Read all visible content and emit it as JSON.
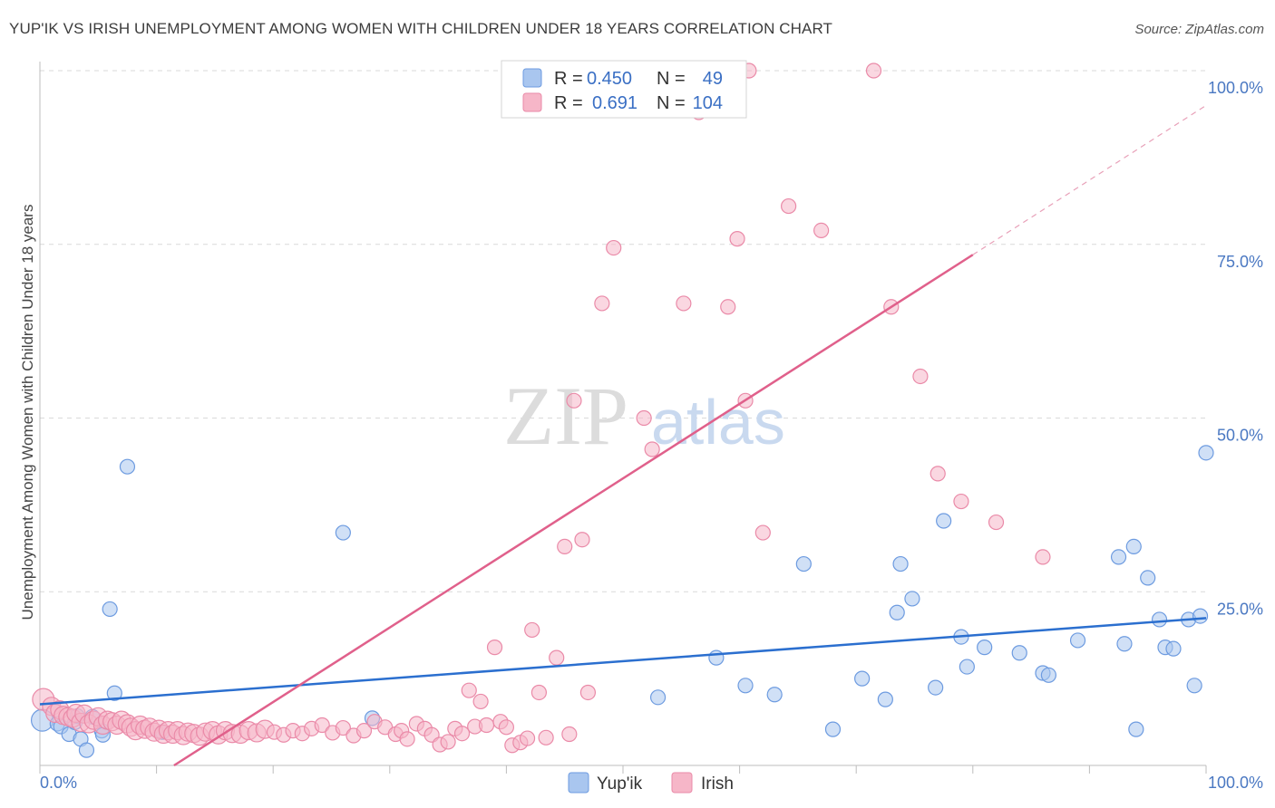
{
  "header": {
    "title": "YUP'IK VS IRISH UNEMPLOYMENT AMONG WOMEN WITH CHILDREN UNDER 18 YEARS CORRELATION CHART",
    "source": "Source: ZipAtlas.com"
  },
  "watermark": {
    "zip": "ZIP",
    "atlas": "atlas"
  },
  "colors": {
    "yupik_fill": "#a9c6ef",
    "yupik_stroke": "#6d9be0",
    "yupik_line": "#2b6fcf",
    "irish_fill": "#f6b6c8",
    "irish_stroke": "#ea8aa8",
    "irish_line": "#e0608b",
    "grid": "#d9d9d9",
    "tick_text": "#4a78c2"
  },
  "chart_data": {
    "type": "scatter",
    "title": "YUP'IK VS IRISH UNEMPLOYMENT AMONG WOMEN WITH CHILDREN UNDER 18 YEARS CORRELATION CHART",
    "xlabel": "",
    "ylabel": "Unemployment Among Women with Children Under 18 years",
    "xlim": [
      0,
      100
    ],
    "ylim": [
      0,
      100
    ],
    "x_tick_labels": [
      "0.0%",
      "100.0%"
    ],
    "y_tick_labels": [
      "25.0%",
      "50.0%",
      "75.0%",
      "100.0%"
    ],
    "y_tick_values": [
      25,
      50,
      75,
      100
    ],
    "legend": {
      "yupik": {
        "r_label": "R =",
        "r_value": "0.450",
        "n_label": "N =",
        "n_value": "49"
      },
      "irish": {
        "r_label": "R =",
        "r_value": "0.691",
        "n_label": "N =",
        "n_value": "104"
      }
    },
    "series": [
      {
        "name": "Yup'ik",
        "trend": {
          "x": [
            0,
            100
          ],
          "y": [
            8.8,
            21.2
          ]
        },
        "points": [
          [
            0.2,
            6.5
          ],
          [
            1.5,
            6.0
          ],
          [
            1.8,
            5.6
          ],
          [
            2.5,
            4.5
          ],
          [
            3.0,
            6.2
          ],
          [
            3.2,
            7.1
          ],
          [
            3.5,
            3.8
          ],
          [
            4.0,
            2.2
          ],
          [
            4.5,
            7.0
          ],
          [
            5.3,
            5.0
          ],
          [
            5.4,
            4.4
          ],
          [
            6.0,
            22.5
          ],
          [
            6.4,
            10.4
          ],
          [
            7.5,
            43.0
          ],
          [
            10.5,
            4.8
          ],
          [
            26.0,
            33.5
          ],
          [
            28.5,
            6.8
          ],
          [
            53.0,
            9.8
          ],
          [
            58.0,
            15.5
          ],
          [
            60.5,
            11.5
          ],
          [
            63.0,
            10.2
          ],
          [
            65.5,
            29.0
          ],
          [
            68.0,
            5.2
          ],
          [
            70.5,
            12.5
          ],
          [
            72.5,
            9.5
          ],
          [
            73.5,
            22.0
          ],
          [
            73.8,
            29.0
          ],
          [
            74.8,
            24.0
          ],
          [
            76.8,
            11.2
          ],
          [
            77.5,
            35.2
          ],
          [
            79.0,
            18.5
          ],
          [
            79.5,
            14.2
          ],
          [
            81.0,
            17.0
          ],
          [
            84.0,
            16.2
          ],
          [
            86.0,
            13.3
          ],
          [
            86.5,
            13.0
          ],
          [
            89.0,
            18.0
          ],
          [
            92.5,
            30.0
          ],
          [
            93.0,
            17.5
          ],
          [
            93.8,
            31.5
          ],
          [
            94.0,
            5.2
          ],
          [
            95.0,
            27.0
          ],
          [
            96.0,
            21.0
          ],
          [
            96.5,
            17.0
          ],
          [
            97.2,
            16.8
          ],
          [
            98.5,
            21.0
          ],
          [
            99.0,
            11.5
          ],
          [
            99.5,
            21.5
          ],
          [
            100.0,
            45.0
          ]
        ]
      },
      {
        "name": "Irish",
        "trend": {
          "x": [
            11.5,
            80
          ],
          "y": [
            0,
            73.5
          ]
        },
        "trend_ext": {
          "x": [
            80,
            100
          ],
          "y": [
            73.5,
            95.0
          ]
        },
        "points": [
          [
            0.3,
            9.5
          ],
          [
            1.0,
            8.5
          ],
          [
            1.3,
            7.5
          ],
          [
            1.7,
            8.0
          ],
          [
            2.0,
            7.2
          ],
          [
            2.4,
            7.0
          ],
          [
            2.8,
            6.8
          ],
          [
            3.1,
            7.5
          ],
          [
            3.5,
            6.2
          ],
          [
            3.8,
            7.4
          ],
          [
            4.2,
            6.0
          ],
          [
            4.6,
            6.5
          ],
          [
            5.0,
            7.0
          ],
          [
            5.4,
            5.8
          ],
          [
            5.8,
            6.5
          ],
          [
            6.2,
            6.3
          ],
          [
            6.6,
            5.8
          ],
          [
            7.0,
            6.5
          ],
          [
            7.5,
            6.0
          ],
          [
            7.8,
            5.5
          ],
          [
            8.2,
            5.0
          ],
          [
            8.6,
            5.8
          ],
          [
            9.0,
            5.2
          ],
          [
            9.4,
            5.5
          ],
          [
            9.8,
            4.8
          ],
          [
            10.2,
            5.2
          ],
          [
            10.6,
            4.5
          ],
          [
            11.0,
            5.0
          ],
          [
            11.4,
            4.5
          ],
          [
            11.8,
            5.0
          ],
          [
            12.3,
            4.3
          ],
          [
            12.7,
            4.8
          ],
          [
            13.2,
            4.6
          ],
          [
            13.7,
            4.2
          ],
          [
            14.2,
            4.8
          ],
          [
            14.8,
            5.0
          ],
          [
            15.3,
            4.4
          ],
          [
            15.9,
            5.0
          ],
          [
            16.5,
            4.6
          ],
          [
            17.2,
            4.5
          ],
          [
            17.9,
            5.0
          ],
          [
            18.6,
            4.7
          ],
          [
            19.3,
            5.2
          ],
          [
            20.1,
            4.8
          ],
          [
            20.9,
            4.4
          ],
          [
            21.7,
            5.0
          ],
          [
            22.5,
            4.6
          ],
          [
            23.3,
            5.3
          ],
          [
            24.2,
            5.8
          ],
          [
            25.1,
            4.7
          ],
          [
            26.0,
            5.4
          ],
          [
            26.9,
            4.3
          ],
          [
            27.8,
            5.0
          ],
          [
            28.7,
            6.3
          ],
          [
            29.6,
            5.5
          ],
          [
            30.5,
            4.5
          ],
          [
            31.0,
            5.0
          ],
          [
            31.5,
            3.8
          ],
          [
            32.3,
            6.0
          ],
          [
            33.0,
            5.3
          ],
          [
            33.6,
            4.4
          ],
          [
            34.3,
            3.0
          ],
          [
            35.0,
            3.4
          ],
          [
            35.6,
            5.3
          ],
          [
            36.2,
            4.6
          ],
          [
            36.8,
            10.8
          ],
          [
            37.3,
            5.6
          ],
          [
            37.8,
            9.2
          ],
          [
            38.3,
            5.8
          ],
          [
            39.0,
            17.0
          ],
          [
            39.5,
            6.3
          ],
          [
            40.0,
            5.5
          ],
          [
            40.5,
            2.9
          ],
          [
            41.2,
            3.3
          ],
          [
            41.8,
            3.9
          ],
          [
            42.2,
            19.5
          ],
          [
            42.8,
            10.5
          ],
          [
            43.4,
            4.0
          ],
          [
            44.3,
            15.5
          ],
          [
            45.0,
            31.5
          ],
          [
            45.4,
            4.5
          ],
          [
            45.8,
            52.5
          ],
          [
            46.5,
            32.5
          ],
          [
            47.0,
            10.5
          ],
          [
            48.2,
            66.5
          ],
          [
            49.2,
            74.5
          ],
          [
            51.8,
            50.0
          ],
          [
            52.5,
            45.5
          ],
          [
            55.2,
            66.5
          ],
          [
            56.5,
            94.0
          ],
          [
            59.0,
            66.0
          ],
          [
            59.8,
            75.8
          ],
          [
            60.5,
            52.5
          ],
          [
            60.8,
            100.0
          ],
          [
            62.0,
            33.5
          ],
          [
            64.2,
            80.5
          ],
          [
            67.0,
            77.0
          ],
          [
            71.5,
            100.0
          ],
          [
            73.0,
            66.0
          ],
          [
            75.5,
            56.0
          ],
          [
            77.0,
            42.0
          ],
          [
            79.0,
            38.0
          ],
          [
            82.0,
            35.0
          ],
          [
            86.0,
            30.0
          ]
        ]
      }
    ]
  }
}
